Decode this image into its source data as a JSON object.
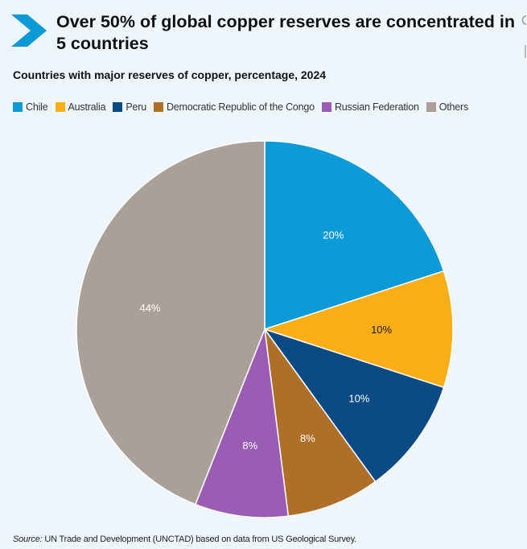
{
  "header": {
    "title": "Over 50% of global copper reserves are concentrated in 5 countries",
    "subtitle": "Countries with major reserves of copper, percentage, 2024"
  },
  "footer": {
    "source_prefix": "Source:",
    "source_text": " UN Trade and Development (UNCTAD) based on data from US Geological Survey."
  },
  "colors": {
    "accent": "#0b9ad7",
    "label_light": "#ffffff",
    "label_dark": "#1a1a1a"
  },
  "chart_data": {
    "type": "pie",
    "title": "Countries with major reserves of copper, percentage, 2024",
    "start_angle": "12 o'clock",
    "direction": "clockwise",
    "legend_position": "top",
    "unit": "%",
    "slices": [
      {
        "label": "Chile",
        "value": 20,
        "display": "20%",
        "color": "#0d9ad8",
        "label_color": "#ffffff"
      },
      {
        "label": "Australia",
        "value": 10,
        "display": "10%",
        "color": "#f9ae17",
        "label_color": "#1a1a1a"
      },
      {
        "label": "Peru",
        "value": 10,
        "display": "10%",
        "color": "#0b4a85",
        "label_color": "#ffffff"
      },
      {
        "label": "Democratic Republic of the Congo",
        "value": 8,
        "display": "8%",
        "color": "#b06f28",
        "label_color": "#ffffff"
      },
      {
        "label": "Russian Federation",
        "value": 8,
        "display": "8%",
        "color": "#9b5cb6",
        "label_color": "#ffffff"
      },
      {
        "label": "Others",
        "value": 44,
        "display": "44%",
        "color": "#aba098",
        "label_color": "#ffffff"
      }
    ]
  }
}
